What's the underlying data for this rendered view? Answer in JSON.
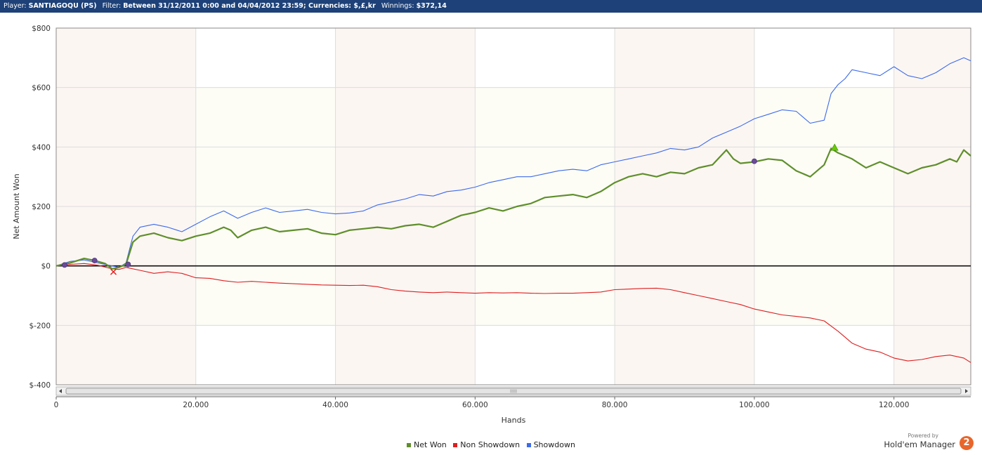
{
  "header": {
    "player_label": "Player:",
    "player_value": "SANTIAGOQU (PS)",
    "filter_label": "Filter:",
    "filter_value": "Between 31/12/2011 0:00 and 04/04/2012 23:59; Currencies: $,£,kr",
    "winnings_label": "Winnings:",
    "winnings_value": "$372,14"
  },
  "brand": {
    "powered_by": "Powered by",
    "name": "Hold'em Manager",
    "badge": "2"
  },
  "colors": {
    "net_won": "#5f8f2a",
    "non_showdown": "#dd1f1f",
    "showdown": "#3d6bea",
    "band_shade": "#fcf6f3",
    "band_mid": "#fdfdf6",
    "header_bg": "#1d4178"
  },
  "chart_data": {
    "type": "line",
    "xlabel": "Hands",
    "ylabel": "Net Amount Won",
    "xlim": [
      0,
      131000
    ],
    "ylim": [
      -400,
      800
    ],
    "x_ticks": [
      0,
      20000,
      40000,
      60000,
      80000,
      100000,
      120000
    ],
    "x_tick_labels": [
      "0",
      "20.000",
      "40.000",
      "60.000",
      "80.000",
      "100.000",
      "120.000"
    ],
    "y_ticks": [
      -400,
      -200,
      0,
      200,
      400,
      600,
      800
    ],
    "y_tick_labels": [
      "$-400",
      "$-200",
      "$0",
      "$200",
      "$400",
      "$600",
      "$800"
    ],
    "grid": true,
    "legend_position": "bottom-center",
    "series": [
      {
        "name": "Net Won",
        "x": [
          0,
          2000,
          4000,
          5500,
          7000,
          8000,
          9000,
          10000,
          11000,
          12000,
          14000,
          16000,
          18000,
          20000,
          22000,
          24000,
          25000,
          26000,
          28000,
          30000,
          32000,
          34000,
          36000,
          38000,
          40000,
          42000,
          44000,
          46000,
          48000,
          50000,
          52000,
          54000,
          56000,
          57000,
          58000,
          60000,
          62000,
          64000,
          66000,
          68000,
          70000,
          72000,
          74000,
          76000,
          78000,
          80000,
          82000,
          84000,
          86000,
          88000,
          90000,
          92000,
          94000,
          96000,
          97000,
          98000,
          100000,
          102000,
          104000,
          106000,
          108000,
          110000,
          111000,
          112000,
          114000,
          116000,
          118000,
          120000,
          122000,
          124000,
          126000,
          128000,
          129000,
          130000,
          131000
        ],
        "values": [
          0,
          10,
          25,
          18,
          8,
          -10,
          -5,
          5,
          80,
          100,
          110,
          95,
          85,
          100,
          110,
          130,
          120,
          95,
          120,
          130,
          115,
          120,
          125,
          110,
          105,
          120,
          125,
          130,
          125,
          135,
          140,
          130,
          150,
          160,
          170,
          180,
          195,
          185,
          200,
          210,
          230,
          235,
          240,
          230,
          250,
          280,
          300,
          310,
          300,
          315,
          310,
          330,
          340,
          390,
          360,
          345,
          350,
          360,
          355,
          320,
          300,
          340,
          395,
          380,
          360,
          330,
          350,
          330,
          310,
          330,
          340,
          360,
          350,
          390,
          370
        ]
      },
      {
        "name": "Non Showdown",
        "x": [
          0,
          2000,
          4000,
          6000,
          8000,
          9000,
          10000,
          12000,
          14000,
          16000,
          18000,
          20000,
          22000,
          24000,
          26000,
          28000,
          30000,
          32000,
          34000,
          36000,
          38000,
          40000,
          42000,
          44000,
          46000,
          48000,
          50000,
          52000,
          54000,
          56000,
          58000,
          60000,
          62000,
          64000,
          66000,
          68000,
          70000,
          72000,
          74000,
          76000,
          78000,
          80000,
          82000,
          84000,
          86000,
          88000,
          90000,
          92000,
          94000,
          96000,
          98000,
          100000,
          102000,
          104000,
          106000,
          108000,
          110000,
          112000,
          114000,
          116000,
          118000,
          120000,
          122000,
          124000,
          126000,
          128000,
          130000,
          131000
        ],
        "values": [
          0,
          5,
          8,
          2,
          -10,
          -12,
          -5,
          -15,
          -25,
          -20,
          -25,
          -40,
          -42,
          -50,
          -55,
          -52,
          -55,
          -58,
          -60,
          -62,
          -64,
          -65,
          -66,
          -65,
          -70,
          -80,
          -85,
          -88,
          -90,
          -88,
          -90,
          -92,
          -90,
          -91,
          -90,
          -92,
          -93,
          -92,
          -92,
          -90,
          -88,
          -80,
          -78,
          -76,
          -75,
          -80,
          -90,
          -100,
          -110,
          -120,
          -130,
          -145,
          -155,
          -165,
          -170,
          -175,
          -185,
          -220,
          -260,
          -280,
          -290,
          -310,
          -320,
          -315,
          -305,
          -300,
          -310,
          -325
        ]
      },
      {
        "name": "Showdown",
        "x": [
          0,
          2000,
          4000,
          6000,
          8000,
          9000,
          10000,
          11000,
          12000,
          14000,
          16000,
          18000,
          20000,
          22000,
          24000,
          26000,
          28000,
          30000,
          32000,
          34000,
          36000,
          38000,
          40000,
          42000,
          44000,
          46000,
          48000,
          50000,
          52000,
          54000,
          56000,
          58000,
          60000,
          62000,
          64000,
          66000,
          68000,
          70000,
          72000,
          74000,
          76000,
          78000,
          80000,
          82000,
          84000,
          86000,
          88000,
          90000,
          92000,
          94000,
          96000,
          98000,
          100000,
          102000,
          104000,
          106000,
          108000,
          110000,
          111000,
          112000,
          113000,
          114000,
          116000,
          118000,
          120000,
          122000,
          124000,
          126000,
          128000,
          130000,
          131000
        ],
        "values": [
          0,
          15,
          20,
          10,
          0,
          -5,
          10,
          100,
          130,
          140,
          130,
          115,
          140,
          165,
          185,
          160,
          180,
          195,
          180,
          185,
          190,
          180,
          175,
          178,
          185,
          205,
          215,
          225,
          240,
          235,
          250,
          255,
          265,
          280,
          290,
          300,
          300,
          310,
          320,
          325,
          320,
          340,
          350,
          360,
          370,
          380,
          395,
          390,
          400,
          430,
          450,
          470,
          495,
          510,
          525,
          520,
          480,
          490,
          580,
          610,
          630,
          660,
          650,
          640,
          670,
          640,
          630,
          650,
          680,
          700,
          690
        ]
      }
    ],
    "markers": [
      {
        "series": "Net Won",
        "shape": "circle",
        "x": 1200,
        "y": 3
      },
      {
        "series": "Net Won",
        "shape": "circle",
        "x": 5500,
        "y": 18
      },
      {
        "series": "Net Won",
        "shape": "circle",
        "x": 10300,
        "y": 5
      },
      {
        "series": "Net Won",
        "shape": "circle",
        "x": 100000,
        "y": 352
      },
      {
        "series": "Net Won",
        "shape": "x",
        "x": 8200,
        "y": -20
      },
      {
        "series": "Net Won",
        "shape": "triangle",
        "x": 111500,
        "y": 398
      }
    ]
  }
}
